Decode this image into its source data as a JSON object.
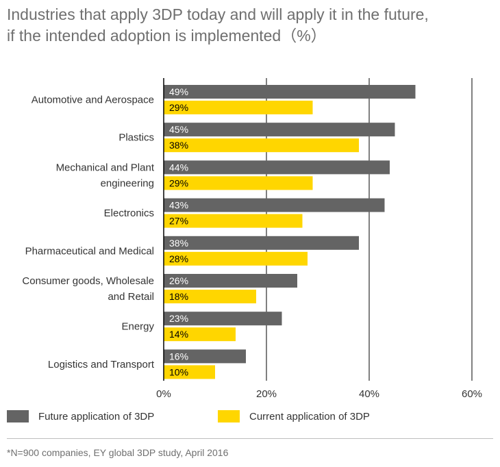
{
  "title_line1": "Industries that apply 3DP today and will apply it in the future,",
  "title_line2": "if the intended adoption is implemented（%）",
  "footnote": "*N=900 companies, EY global 3DP study, April 2016",
  "colors": {
    "future": "#646464",
    "current": "#ffd600",
    "axis": "#000000",
    "text": "#333333"
  },
  "chart_data": {
    "type": "bar",
    "orientation": "horizontal",
    "categories": [
      [
        "Automotive and Aerospace"
      ],
      [
        "Plastics"
      ],
      [
        "Mechanical and Plant",
        "engineering"
      ],
      [
        "Electronics"
      ],
      [
        "Pharmaceutical and Medical"
      ],
      [
        "Consumer goods, Wholesale",
        "and Retail"
      ],
      [
        "Energy"
      ],
      [
        "Logistics and Transport"
      ]
    ],
    "series": [
      {
        "name": "Future application of 3DP",
        "color": "#646464",
        "values": [
          49,
          45,
          44,
          43,
          38,
          26,
          23,
          16
        ]
      },
      {
        "name": "Current application of 3DP",
        "color": "#ffd600",
        "values": [
          29,
          38,
          29,
          27,
          28,
          18,
          14,
          10
        ]
      }
    ],
    "xlim": [
      0,
      60
    ],
    "xticks": [
      0,
      20,
      40,
      60
    ],
    "tick_suffix": "%",
    "grid": true,
    "legend_position": "bottom"
  }
}
